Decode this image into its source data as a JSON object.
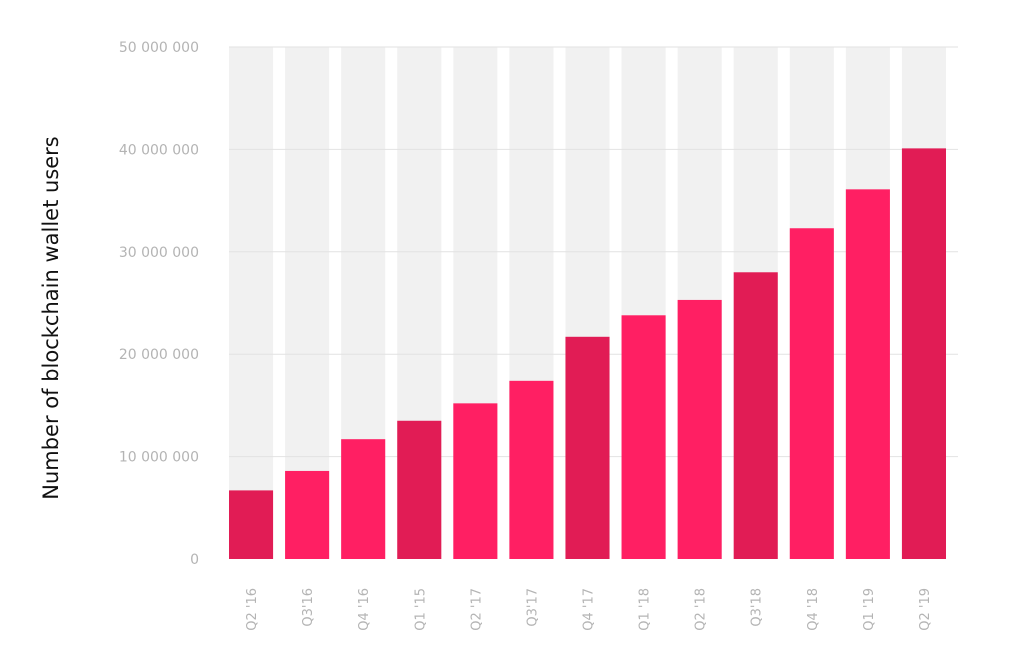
{
  "chart_data": {
    "type": "bar",
    "title": "",
    "xlabel": "",
    "ylabel": "Number of blockchain wallet users",
    "categories": [
      "Q2 '16",
      "Q3'16",
      "Q4 '16",
      "Q1 '15",
      "Q2 '17",
      "Q3'17",
      "Q4 '17",
      "Q1 '18",
      "Q2 '18",
      "Q3'18",
      "Q4 '18",
      "Q1 '19",
      "Q2 '19"
    ],
    "values": [
      6700000,
      8600000,
      11700000,
      13500000,
      15200000,
      17400000,
      21700000,
      23800000,
      25300000,
      28000000,
      32300000,
      36100000,
      40100000
    ],
    "ylim": [
      0,
      50000000
    ],
    "yticks": [
      0,
      10000000,
      20000000,
      30000000,
      40000000,
      50000000
    ],
    "ytick_labels": [
      "0",
      "10 000 000",
      "20 000 000",
      "30 000 000",
      "40 000 000",
      "50 000 000"
    ],
    "grid": true,
    "legend": "none",
    "colors": {
      "bar_dark": "#e11c55",
      "bar_light": "#ff1f63",
      "column_background": "#f1f1f1",
      "gridline": "#e2e2e2",
      "tick_text": "#b4b4b4",
      "axis_label": "#111111"
    }
  }
}
